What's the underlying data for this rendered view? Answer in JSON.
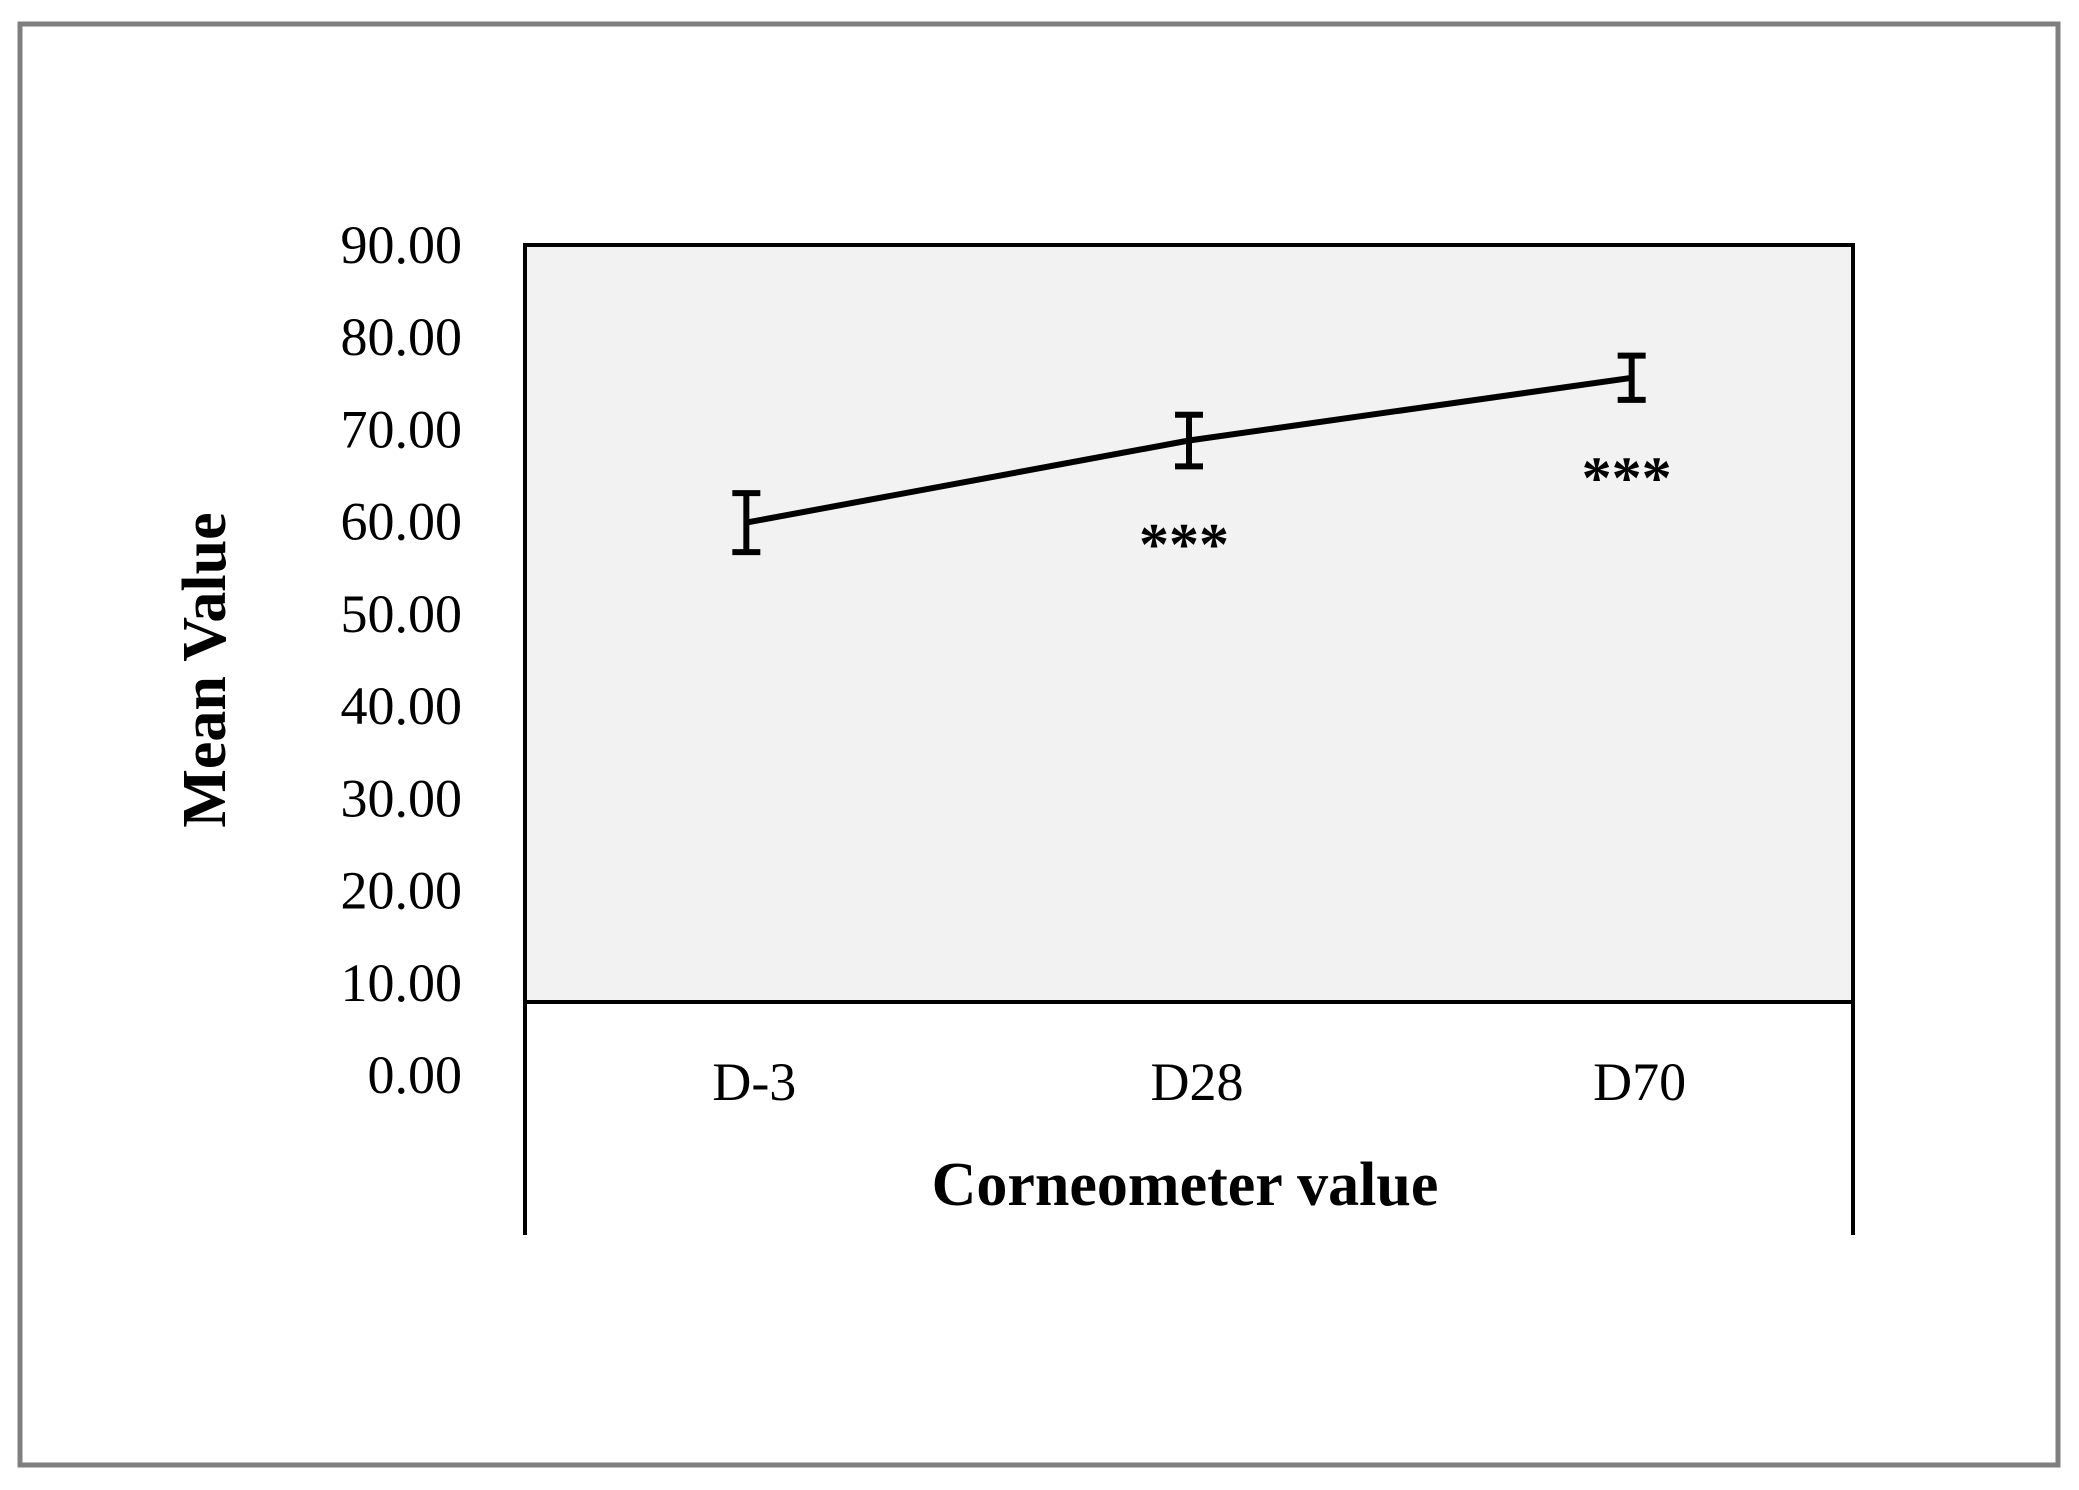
{
  "chart_data": {
    "type": "line",
    "categories": [
      "D-3",
      "D28",
      "D70"
    ],
    "series": [
      {
        "values": [
          59.9,
          68.8,
          75.6
        ],
        "error": [
          3.2,
          2.8,
          2.4
        ],
        "annotations": [
          "",
          "***",
          "***"
        ]
      }
    ],
    "xlabel": "Corneometer value",
    "ylabel": "Mean Value",
    "ylim": [
      0,
      90
    ],
    "yticks": [
      "0.00",
      "10.00",
      "20.00",
      "30.00",
      "40.00",
      "50.00",
      "60.00",
      "70.00",
      "80.00",
      "90.00"
    ],
    "colors": {
      "plot_background": "#f2f2f2",
      "line": "#000000",
      "frame": "#7f7f7f"
    }
  }
}
